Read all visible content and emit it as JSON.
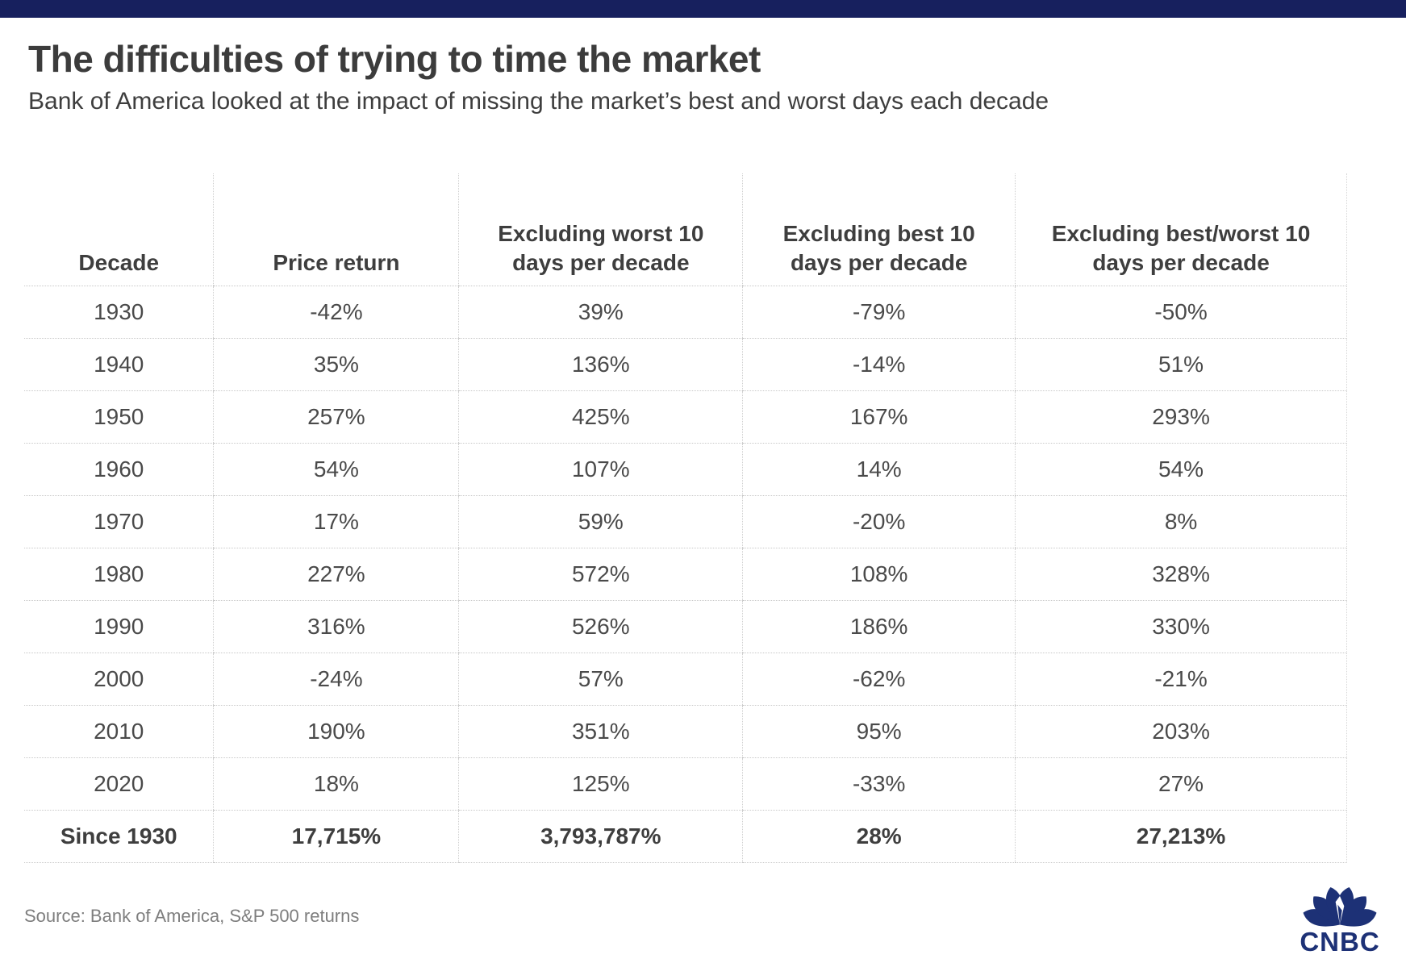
{
  "page": {
    "title": "The difficulties of trying to time the market",
    "subtitle": "Bank of America looked at the impact of missing the market’s best and worst days each decade",
    "source": "Source: Bank of America, S&P 500 returns"
  },
  "brand": {
    "wordmark": "CNBC"
  },
  "colors": {
    "top_bar": "#17205E",
    "logo_navy": "#1D3176",
    "title_text": "#3C3C3C",
    "table_text": "#4A4A4A",
    "grid_dotted_line": "#C9C9C9",
    "source_text": "#7E7E7E"
  },
  "table": {
    "header_lines": [
      {
        "l1": "Decade",
        "l2": ""
      },
      {
        "l1": "Price return",
        "l2": ""
      },
      {
        "l1": "Excluding worst 10",
        "l2": "days per decade"
      },
      {
        "l1": "Excluding best 10",
        "l2": "days per decade"
      },
      {
        "l1": "Excluding best/worst 10",
        "l2": "days per decade"
      }
    ]
  },
  "chart_data": {
    "type": "table",
    "title": "The difficulties of trying to time the market",
    "subtitle": "Bank of America looked at the impact of missing the market’s best and worst days each decade",
    "source": "Source: Bank of America, S&P 500 returns",
    "columns": [
      "Decade",
      "Price return",
      "Excluding worst 10 days per decade",
      "Excluding best 10 days per decade",
      "Excluding best/worst 10 days per decade"
    ],
    "rows": [
      [
        "1930",
        "-42%",
        "39%",
        "-79%",
        "-50%"
      ],
      [
        "1940",
        "35%",
        "136%",
        "-14%",
        "51%"
      ],
      [
        "1950",
        "257%",
        "425%",
        "167%",
        "293%"
      ],
      [
        "1960",
        "54%",
        "107%",
        "14%",
        "54%"
      ],
      [
        "1970",
        "17%",
        "59%",
        "-20%",
        "8%"
      ],
      [
        "1980",
        "227%",
        "572%",
        "108%",
        "328%"
      ],
      [
        "1990",
        "316%",
        "526%",
        "186%",
        "330%"
      ],
      [
        "2000",
        "-24%",
        "57%",
        "-62%",
        "-21%"
      ],
      [
        "2010",
        "190%",
        "351%",
        "95%",
        "203%"
      ],
      [
        "2020",
        "18%",
        "125%",
        "-33%",
        "27%"
      ]
    ],
    "summary_row": [
      "Since 1930",
      "17,715%",
      "3,793,787%",
      "28%",
      "27,213%"
    ]
  }
}
